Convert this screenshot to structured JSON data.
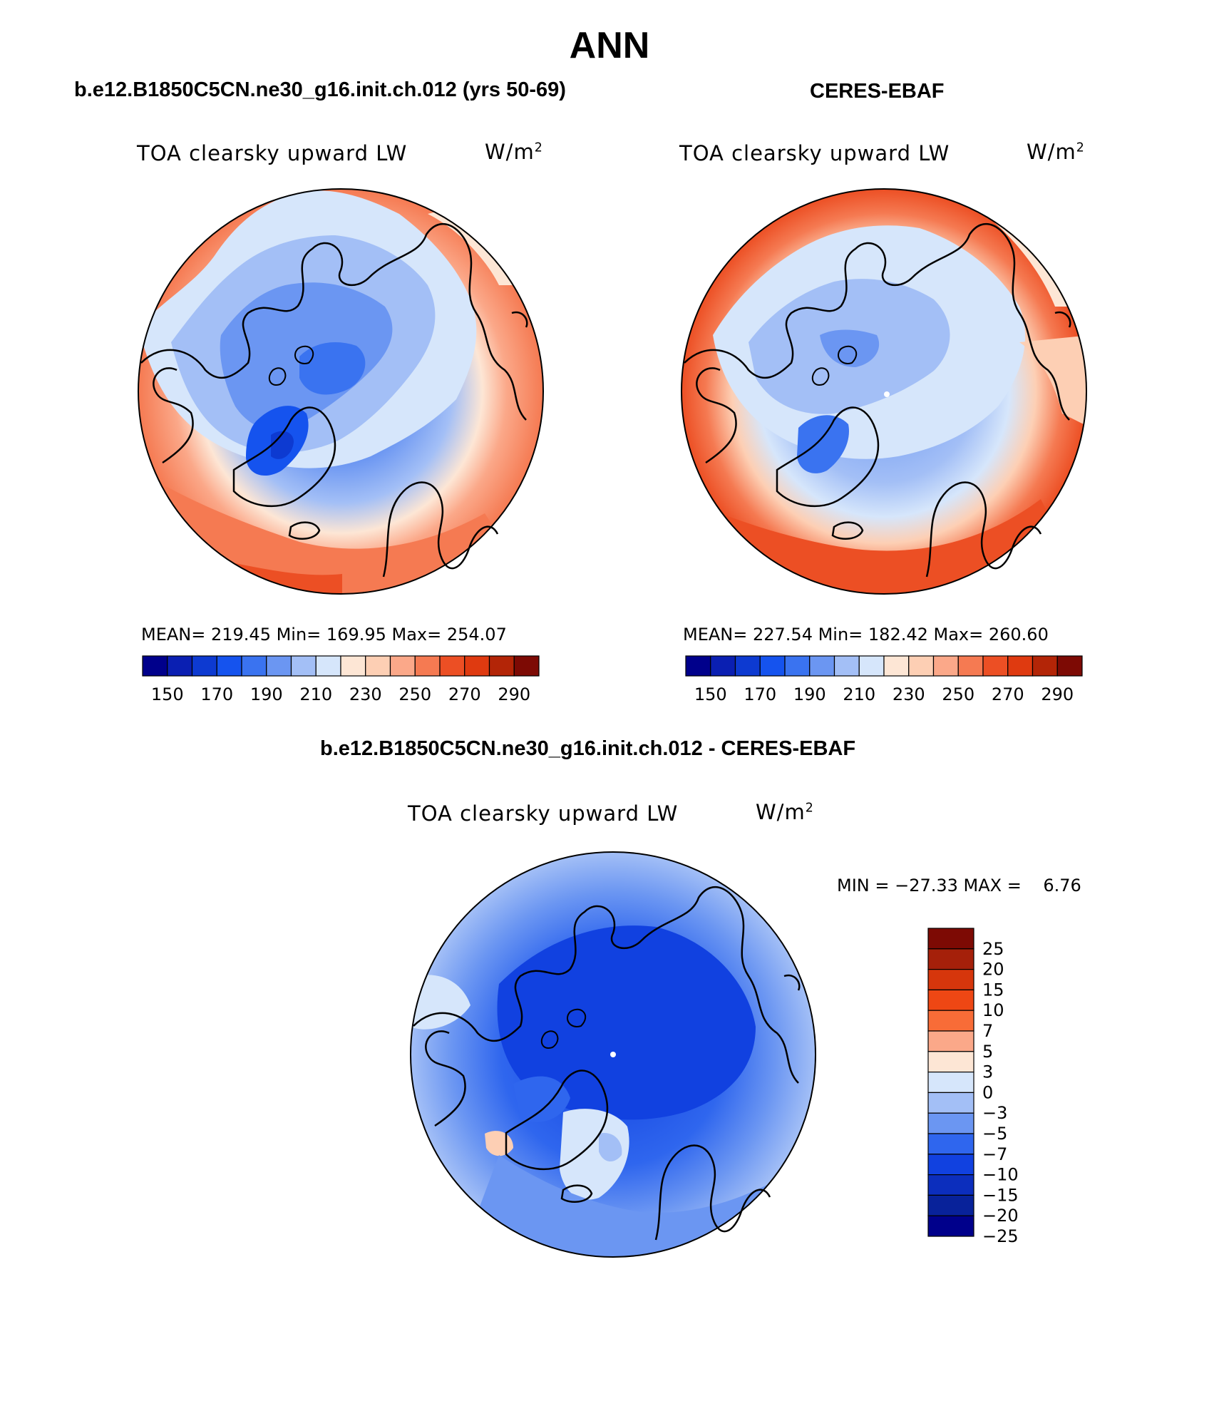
{
  "figure": {
    "title": "ANN"
  },
  "panels": {
    "model": {
      "title": "b.e12.B1850C5CN.ne30_g16.init.ch.012 (yrs 50-69)",
      "variable": "TOA clearsky upward LW",
      "units_base": "W/m",
      "units_exp": "2",
      "stats": "MEAN= 219.45   Min= 169.95   Max= 254.07",
      "mean": 219.45,
      "min": 169.95,
      "max": 254.07
    },
    "obs": {
      "title": "CERES-EBAF",
      "variable": "TOA clearsky upward LW",
      "units_base": "W/m",
      "units_exp": "2",
      "stats": "MEAN= 227.54   Min= 182.42   Max= 260.60",
      "mean": 227.54,
      "min": 182.42,
      "max": 260.6
    },
    "diff": {
      "title": "b.e12.B1850C5CN.ne30_g16.init.ch.012 - CERES-EBAF",
      "variable": "TOA clearsky upward LW",
      "units_base": "W/m",
      "units_exp": "2",
      "stats": "MIN = −27.33 MAX =    6.76",
      "min": -27.33,
      "max": 6.76
    }
  },
  "colorbars": {
    "abs_colors": [
      "#00008b",
      "#0a1fb2",
      "#0d3ad1",
      "#1553ee",
      "#3a73f0",
      "#6b96f2",
      "#a3bff6",
      "#d6e6fb",
      "#fde6d5",
      "#fdcfb4",
      "#fba889",
      "#f57a52",
      "#ec4f24",
      "#df3a10",
      "#b32507",
      "#7d0a04"
    ],
    "abs_ticks": [
      "150",
      "170",
      "190",
      "210",
      "230",
      "250",
      "270",
      "290"
    ],
    "diff_colors": [
      "#7d0a04",
      "#a5200a",
      "#d6360c",
      "#ee4714",
      "#f86c37",
      "#fba889",
      "#fde6d5",
      "#d6e6fb",
      "#a3bff6",
      "#6b96f2",
      "#2f66ee",
      "#1141e0",
      "#0c2ebd",
      "#08229a",
      "#00008b"
    ],
    "diff_ticks": [
      "25",
      "20",
      "15",
      "10",
      "7",
      "5",
      "3",
      "0",
      "−3",
      "−5",
      "−7",
      "−10",
      "−15",
      "−20",
      "−25"
    ]
  }
}
